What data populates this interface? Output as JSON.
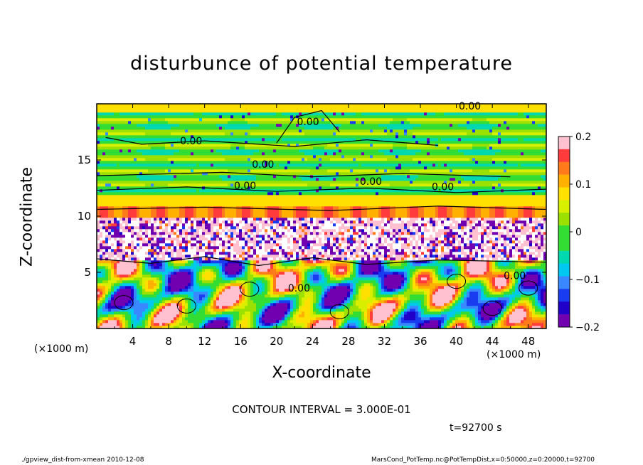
{
  "chart_data": {
    "type": "heatmap",
    "title": "disturbunce of potential temperature",
    "xlabel": "X-coordinate",
    "ylabel": "Z-coordinate",
    "x_unit_label": "(×1000 m)",
    "y_unit_label": "(×1000 m)",
    "xlim": [
      0,
      50
    ],
    "ylim": [
      0,
      20
    ],
    "x_ticks": [
      4,
      8,
      12,
      16,
      20,
      24,
      28,
      32,
      36,
      40,
      44,
      48
    ],
    "y_ticks": [
      5,
      10,
      15
    ],
    "colorbar": {
      "range": [
        -0.2,
        0.2
      ],
      "tick_values": [
        0.2,
        0.1,
        0,
        -0.1,
        -0.2
      ],
      "tick_labels": [
        "0.2",
        "0.1",
        "0",
        "−0.1",
        "−0.2"
      ],
      "colors": [
        "#ffc0d0",
        "#ff3b3b",
        "#ff7a1a",
        "#ffb000",
        "#ffe000",
        "#d8f000",
        "#9be000",
        "#33dd33",
        "#33dd33",
        "#00d8b0",
        "#00c8f0",
        "#3a88ff",
        "#1a3cf0",
        "#2000c8",
        "#7000b0"
      ]
    },
    "contour_labels": [
      "0.00",
      "0.00",
      "0.00",
      "0.00",
      "0.00",
      "0.00",
      "0.00",
      "0.00",
      "0.00"
    ],
    "contour_interval_text": "CONTOUR INTERVAL = 3.000E-01",
    "time_text": "t=92700 s"
  },
  "footer": {
    "left": "./gpview_dist-from-xmean   2010-12-08",
    "right": "MarsCond_PotTemp.nc@PotTempDist,x=0:50000,z=0:20000,t=92700"
  }
}
